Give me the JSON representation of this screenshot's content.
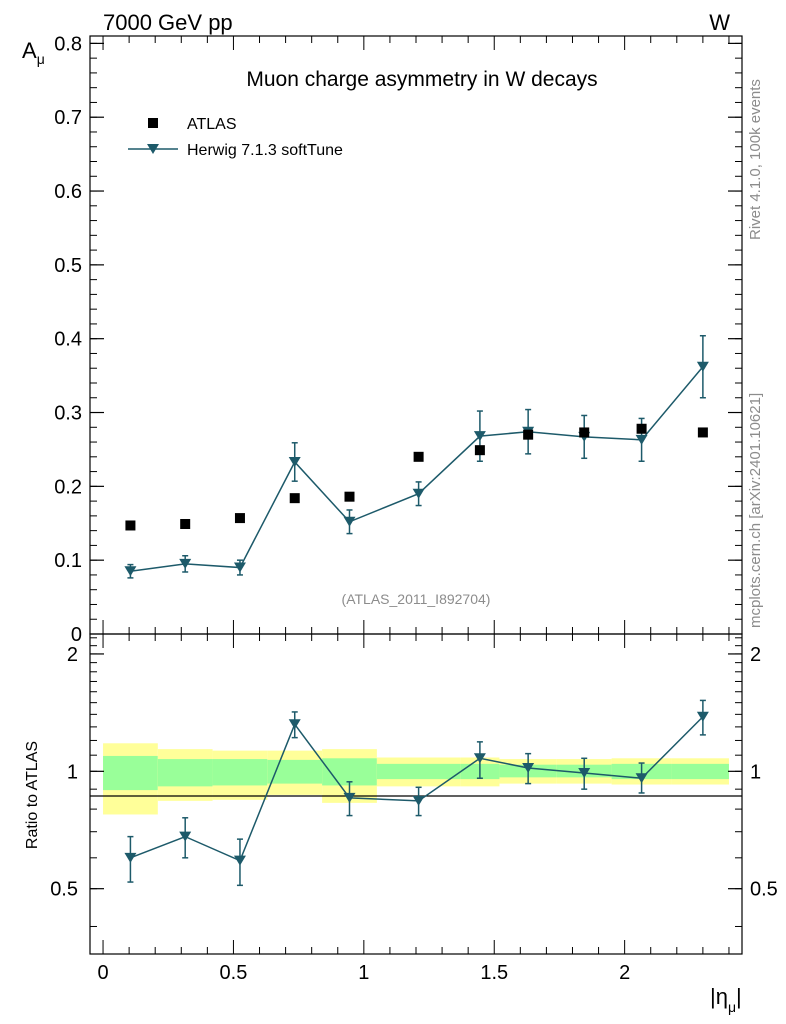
{
  "header": {
    "left": "7000 GeV pp",
    "right": "W"
  },
  "side_labels": {
    "rivet": "Rivet 4.1.0,  100k events",
    "mcplots": "mcplots.cern.ch [arXiv:2401.10621]"
  },
  "colors": {
    "mc": "#1d5a6a",
    "data": "#000000",
    "band_inner": "#99ff99",
    "band_outer": "#ffff99"
  },
  "chart_data": [
    {
      "type": "scatter",
      "panel": "main",
      "title": "Muon charge asymmetry in W decays",
      "ylabel_main": "A",
      "ylabel_sub": "μ",
      "xlim": [
        -0.05,
        2.45
      ],
      "ylim": [
        0,
        0.81
      ],
      "yticks": [
        0.1,
        0.2,
        0.3,
        0.4,
        0.5,
        0.6,
        0.7,
        0.8
      ],
      "ytick_labels": [
        "0.1",
        "0.2",
        "0.3",
        "0.4",
        "0.5",
        "0.6",
        "0.7",
        "0.8"
      ],
      "y0_label": "0",
      "legend": [
        {
          "name": "ATLAS",
          "marker": "square"
        },
        {
          "name": "Herwig 7.1.3 softTune",
          "marker": "triangle-down"
        }
      ],
      "annotation": "(ATLAS_2011_I892704)",
      "series": [
        {
          "name": "ATLAS",
          "x": [
            0.105,
            0.315,
            0.525,
            0.735,
            0.945,
            1.21,
            1.445,
            1.63,
            1.845,
            2.065,
            2.3
          ],
          "y": [
            0.147,
            0.149,
            0.157,
            0.184,
            0.186,
            0.24,
            0.249,
            0.27,
            0.273,
            0.278,
            0.273
          ]
        },
        {
          "name": "Herwig 7.1.3 softTune",
          "x": [
            0.105,
            0.315,
            0.525,
            0.735,
            0.945,
            1.21,
            1.445,
            1.63,
            1.845,
            2.065,
            2.3
          ],
          "y": [
            0.085,
            0.095,
            0.09,
            0.233,
            0.152,
            0.19,
            0.268,
            0.274,
            0.267,
            0.263,
            0.362
          ],
          "yerr": [
            0.009,
            0.011,
            0.01,
            0.026,
            0.016,
            0.016,
            0.034,
            0.03,
            0.029,
            0.029,
            0.042
          ]
        }
      ]
    },
    {
      "type": "scatter",
      "panel": "ratio",
      "ylabel": "Ratio to ATLAS",
      "xlabel_main": "|η",
      "xlabel_sub": "μ",
      "xlabel_end": "|",
      "xlim": [
        -0.05,
        2.45
      ],
      "ylim": [
        0.34,
        2.25
      ],
      "xticks": [
        0,
        0.5,
        1,
        1.5,
        2
      ],
      "xtick_labels": [
        "0",
        "0.5",
        "1",
        "1.5",
        "2"
      ],
      "yticks": [
        0.5,
        1,
        2
      ],
      "ytick_labels": [
        "0.5",
        "1",
        "2"
      ],
      "bins": [
        {
          "lo": 0.0,
          "hi": 0.21,
          "inner": [
            0.895,
            1.095
          ],
          "outer": [
            0.775,
            1.18
          ]
        },
        {
          "lo": 0.21,
          "hi": 0.42,
          "inner": [
            0.915,
            1.075
          ],
          "outer": [
            0.84,
            1.14
          ]
        },
        {
          "lo": 0.42,
          "hi": 0.63,
          "inner": [
            0.92,
            1.075
          ],
          "outer": [
            0.845,
            1.13
          ]
        },
        {
          "lo": 0.63,
          "hi": 0.84,
          "inner": [
            0.93,
            1.07
          ],
          "outer": [
            0.87,
            1.13
          ]
        },
        {
          "lo": 0.84,
          "hi": 1.05,
          "inner": [
            0.92,
            1.08
          ],
          "outer": [
            0.83,
            1.14
          ]
        },
        {
          "lo": 1.05,
          "hi": 1.37,
          "inner": [
            0.955,
            1.045
          ],
          "outer": [
            0.915,
            1.085
          ]
        },
        {
          "lo": 1.37,
          "hi": 1.52,
          "inner": [
            0.955,
            1.045
          ],
          "outer": [
            0.915,
            1.085
          ]
        },
        {
          "lo": 1.52,
          "hi": 1.74,
          "inner": [
            0.965,
            1.04
          ],
          "outer": [
            0.93,
            1.075
          ]
        },
        {
          "lo": 1.74,
          "hi": 1.95,
          "inner": [
            0.965,
            1.04
          ],
          "outer": [
            0.93,
            1.075
          ]
        },
        {
          "lo": 1.95,
          "hi": 2.18,
          "inner": [
            0.955,
            1.045
          ],
          "outer": [
            0.925,
            1.08
          ]
        },
        {
          "lo": 2.18,
          "hi": 2.4,
          "inner": [
            0.955,
            1.045
          ],
          "outer": [
            0.925,
            1.08
          ]
        }
      ],
      "series": [
        {
          "name": "Herwig 7.1.3 softTune / ATLAS",
          "x": [
            0.105,
            0.315,
            0.525,
            0.735,
            0.945,
            1.21,
            1.445,
            1.63,
            1.845,
            2.065,
            2.3
          ],
          "y": [
            0.6,
            0.68,
            0.59,
            1.32,
            0.855,
            0.84,
            1.08,
            1.02,
            0.99,
            0.96,
            1.38
          ],
          "ylo": [
            0.52,
            0.6,
            0.51,
            1.22,
            0.77,
            0.77,
            0.96,
            0.93,
            0.9,
            0.88,
            1.24
          ],
          "yhi": [
            0.68,
            0.76,
            0.67,
            1.42,
            0.94,
            0.91,
            1.19,
            1.11,
            1.08,
            1.05,
            1.52
          ]
        }
      ]
    }
  ]
}
